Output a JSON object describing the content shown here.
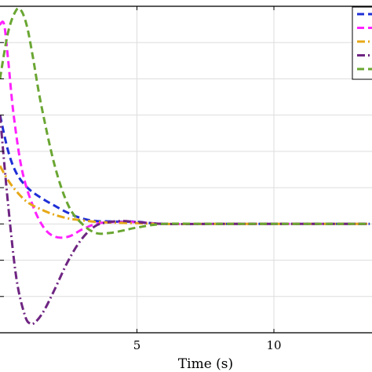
{
  "chart_data": {
    "type": "line",
    "xlabel": "Time (s)",
    "ylabel": "",
    "xlim": [
      0,
      13.5
    ],
    "ylim": [
      -3,
      6
    ],
    "xticks": [
      0,
      5,
      10
    ],
    "xtick_labels": [
      "",
      "5",
      "10"
    ],
    "yticks": [
      -2,
      -1,
      0,
      1,
      2,
      3,
      4,
      5,
      6
    ],
    "grid": true,
    "legend_position": "top-right",
    "series": [
      {
        "color": "#1f2fd6",
        "dash": "dashed",
        "x": [
          0,
          0.3,
          0.6,
          1.0,
          1.5,
          2.0,
          2.5,
          3.0,
          3.5,
          4.0,
          4.5,
          5.0,
          6.0,
          8.0,
          10.0,
          13.5
        ],
        "y": [
          3.0,
          2.0,
          1.4,
          1.0,
          0.72,
          0.5,
          0.3,
          0.15,
          0.08,
          0.07,
          0.06,
          0.06,
          0.0,
          0.0,
          0.0,
          0.0
        ]
      },
      {
        "color": "#ff22ff",
        "dash": "dashed",
        "x": [
          0,
          0.15,
          0.3,
          0.5,
          0.8,
          1.2,
          1.6,
          2.0,
          2.5,
          3.0,
          3.5,
          4.0,
          4.5,
          5.0,
          6.0,
          8.0,
          13.5
        ],
        "y": [
          5.5,
          5.5,
          4.5,
          3.0,
          1.5,
          0.5,
          -0.1,
          -0.35,
          -0.35,
          -0.15,
          0.0,
          0.05,
          0.05,
          0.05,
          0.0,
          0.0,
          0.0
        ]
      },
      {
        "color": "#e6a817",
        "dash": "dashdot",
        "x": [
          0,
          0.3,
          0.6,
          1.0,
          1.5,
          2.0,
          2.5,
          3.0,
          3.5,
          4.0,
          5.0,
          6.0,
          8.0,
          13.5
        ],
        "y": [
          1.6,
          1.2,
          0.9,
          0.6,
          0.4,
          0.25,
          0.15,
          0.1,
          0.06,
          0.04,
          0.02,
          0.0,
          0.0,
          0.0
        ]
      },
      {
        "color": "#6e2582",
        "dash": "dashdot",
        "x": [
          0,
          0.3,
          0.6,
          0.9,
          1.1,
          1.3,
          1.6,
          2.0,
          2.5,
          3.0,
          3.5,
          4.0,
          4.5,
          5.0,
          6.0,
          8.0,
          13.5
        ],
        "y": [
          3.0,
          0.5,
          -1.5,
          -2.5,
          -2.75,
          -2.7,
          -2.4,
          -1.8,
          -1.0,
          -0.4,
          -0.05,
          0.05,
          0.08,
          0.05,
          0.0,
          0.0,
          0.0
        ]
      },
      {
        "color": "#6aa632",
        "dash": "dashed",
        "x": [
          0,
          0.3,
          0.6,
          0.8,
          1.0,
          1.2,
          1.5,
          2.0,
          2.5,
          3.0,
          3.5,
          4.0,
          4.5,
          5.0,
          6.0,
          8.0,
          13.5
        ],
        "y": [
          4.0,
          5.3,
          5.9,
          5.85,
          5.4,
          4.6,
          3.3,
          1.6,
          0.5,
          0.0,
          -0.25,
          -0.25,
          -0.18,
          -0.1,
          0.0,
          0.0,
          0.0
        ]
      }
    ]
  }
}
